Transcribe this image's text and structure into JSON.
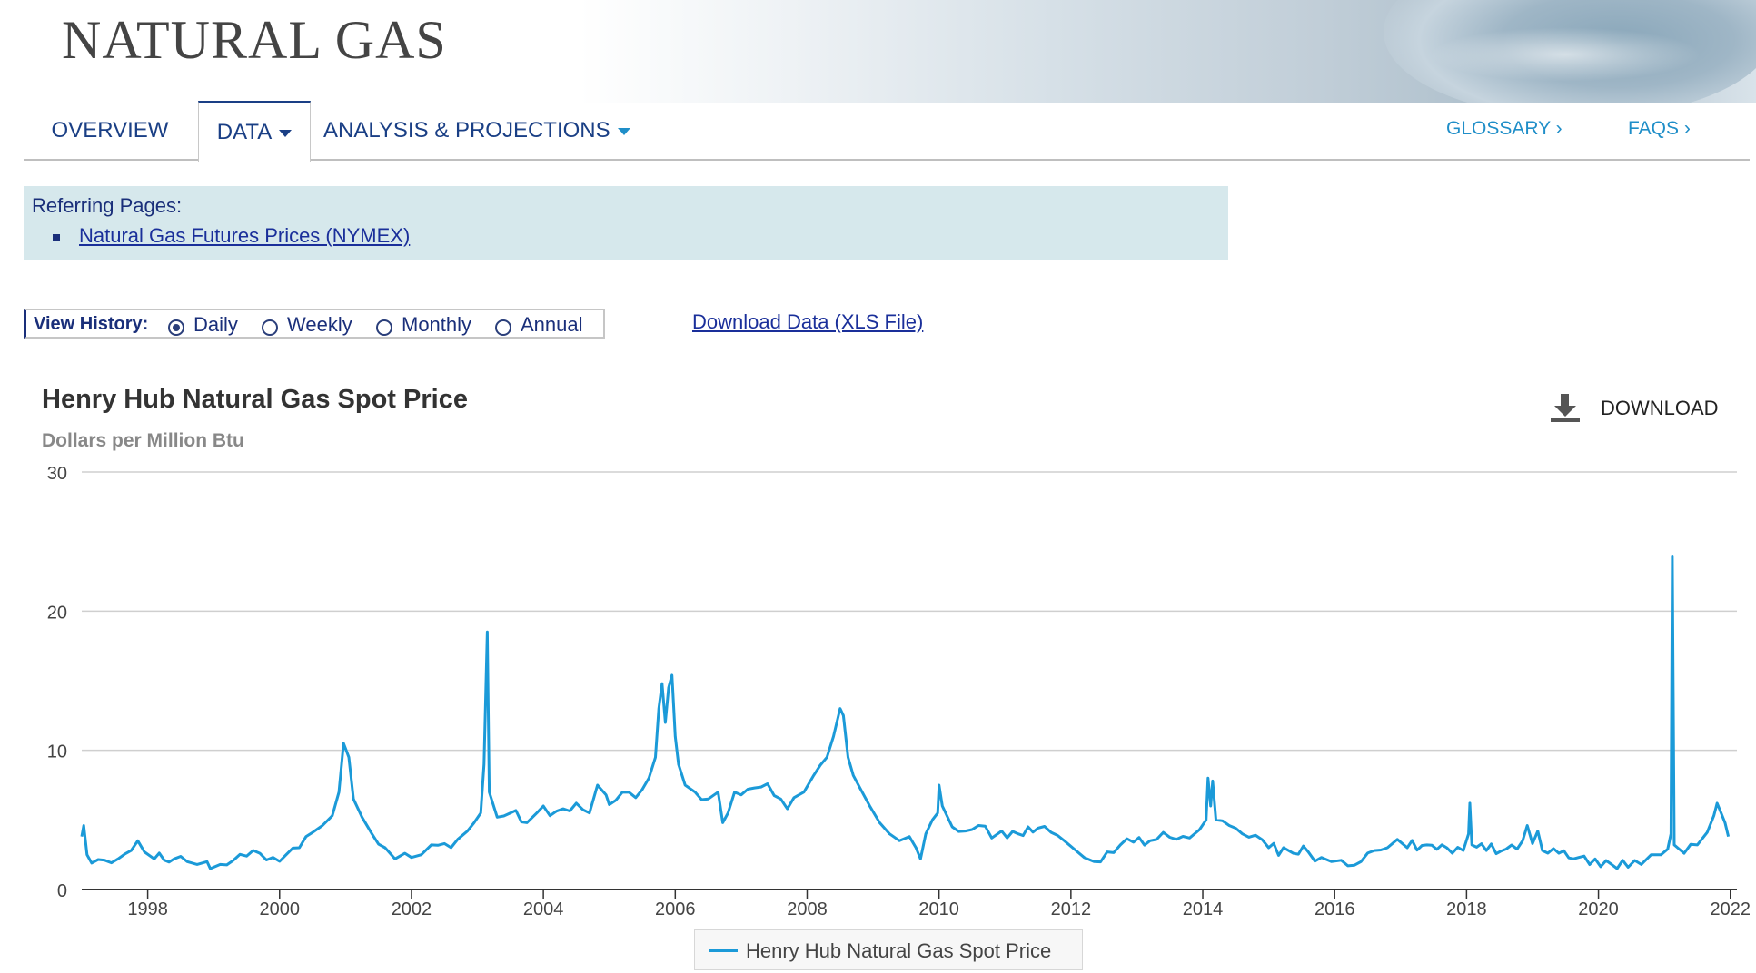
{
  "header": {
    "title": "NATURAL GAS"
  },
  "nav": {
    "overview": "OVERVIEW",
    "data": "DATA",
    "analysis": "ANALYSIS & PROJECTIONS",
    "glossary": "GLOSSARY ›",
    "faqs": "FAQS ›"
  },
  "referring": {
    "title": "Referring Pages:",
    "link": "Natural Gas Futures Prices (NYMEX)"
  },
  "view_history": {
    "label": "View History:",
    "options": [
      "Daily",
      "Weekly",
      "Monthly",
      "Annual"
    ],
    "selected": "Daily"
  },
  "download_xls": "Download Data (XLS File)",
  "download_button": "DOWNLOAD",
  "colors": {
    "series": "#1b9ad8",
    "nav_text": "#1a3f85",
    "accent": "#1f8ec8",
    "panel": "#d6e8ec"
  },
  "icons": {
    "download": "download-icon"
  },
  "chart_data": {
    "type": "line",
    "title": "Henry Hub Natural Gas Spot Price",
    "subtitle": "Dollars per Million Btu",
    "xlim": [
      1997,
      2022.1
    ],
    "ylim": [
      0,
      30
    ],
    "yticks": [
      0,
      10,
      20,
      30
    ],
    "xticks": [
      1998,
      2000,
      2002,
      2004,
      2006,
      2008,
      2010,
      2012,
      2014,
      2016,
      2018,
      2020,
      2022
    ],
    "grid": true,
    "legend_position": "bottom-center",
    "series": [
      {
        "name": "Henry Hub Natural Gas Spot Price",
        "color": "#1b9ad8",
        "points": [
          [
            1997.0,
            3.8
          ],
          [
            1997.03,
            4.6
          ],
          [
            1997.08,
            2.5
          ],
          [
            1997.15,
            1.9
          ],
          [
            1997.35,
            2.1
          ],
          [
            1997.55,
            2.2
          ],
          [
            1997.75,
            2.8
          ],
          [
            1997.85,
            3.5
          ],
          [
            1997.95,
            2.7
          ],
          [
            1998.1,
            2.2
          ],
          [
            1998.4,
            2.2
          ],
          [
            1998.6,
            2.0
          ],
          [
            1998.75,
            1.8
          ],
          [
            1998.9,
            2.0
          ],
          [
            1998.95,
            1.5
          ],
          [
            1999.1,
            1.8
          ],
          [
            1999.3,
            2.1
          ],
          [
            1999.5,
            2.4
          ],
          [
            1999.7,
            2.6
          ],
          [
            1999.9,
            2.3
          ],
          [
            2000.1,
            2.5
          ],
          [
            2000.3,
            3.0
          ],
          [
            2000.5,
            4.1
          ],
          [
            2000.65,
            4.6
          ],
          [
            2000.8,
            5.3
          ],
          [
            2000.9,
            7.0
          ],
          [
            2000.97,
            10.5
          ],
          [
            2001.05,
            9.5
          ],
          [
            2001.12,
            6.5
          ],
          [
            2001.25,
            5.2
          ],
          [
            2001.4,
            4.0
          ],
          [
            2001.6,
            3.0
          ],
          [
            2001.75,
            2.2
          ],
          [
            2001.9,
            2.6
          ],
          [
            2002.0,
            2.3
          ],
          [
            2002.15,
            2.5
          ],
          [
            2002.3,
            3.2
          ],
          [
            2002.5,
            3.3
          ],
          [
            2002.7,
            3.6
          ],
          [
            2002.85,
            4.2
          ],
          [
            2002.95,
            4.8
          ],
          [
            2003.05,
            5.5
          ],
          [
            2003.1,
            9.0
          ],
          [
            2003.15,
            18.5
          ],
          [
            2003.18,
            7.0
          ],
          [
            2003.3,
            5.2
          ],
          [
            2003.5,
            5.5
          ],
          [
            2003.75,
            4.8
          ],
          [
            2003.9,
            5.5
          ],
          [
            2004.0,
            6.0
          ],
          [
            2004.1,
            5.3
          ],
          [
            2004.3,
            5.8
          ],
          [
            2004.5,
            6.2
          ],
          [
            2004.7,
            5.5
          ],
          [
            2004.82,
            7.5
          ],
          [
            2004.95,
            6.8
          ],
          [
            2005.0,
            6.1
          ],
          [
            2005.2,
            7.0
          ],
          [
            2005.4,
            6.6
          ],
          [
            2005.6,
            8.0
          ],
          [
            2005.7,
            9.5
          ],
          [
            2005.75,
            13.0
          ],
          [
            2005.8,
            14.8
          ],
          [
            2005.85,
            12.0
          ],
          [
            2005.9,
            14.5
          ],
          [
            2005.95,
            15.4
          ],
          [
            2006.0,
            11.0
          ],
          [
            2006.05,
            9.0
          ],
          [
            2006.15,
            7.5
          ],
          [
            2006.3,
            7.0
          ],
          [
            2006.5,
            6.5
          ],
          [
            2006.65,
            7.0
          ],
          [
            2006.72,
            4.8
          ],
          [
            2006.8,
            5.5
          ],
          [
            2006.9,
            7.0
          ],
          [
            2007.0,
            6.8
          ],
          [
            2007.2,
            7.3
          ],
          [
            2007.4,
            7.6
          ],
          [
            2007.6,
            6.5
          ],
          [
            2007.7,
            5.8
          ],
          [
            2007.8,
            6.6
          ],
          [
            2007.95,
            7.0
          ],
          [
            2008.1,
            8.2
          ],
          [
            2008.3,
            9.5
          ],
          [
            2008.4,
            11.0
          ],
          [
            2008.5,
            13.0
          ],
          [
            2008.55,
            12.5
          ],
          [
            2008.62,
            9.5
          ],
          [
            2008.7,
            8.2
          ],
          [
            2008.8,
            7.3
          ],
          [
            2008.95,
            6.0
          ],
          [
            2009.1,
            4.8
          ],
          [
            2009.25,
            4.0
          ],
          [
            2009.4,
            3.5
          ],
          [
            2009.55,
            3.8
          ],
          [
            2009.65,
            3.0
          ],
          [
            2009.72,
            2.2
          ],
          [
            2009.8,
            4.0
          ],
          [
            2009.9,
            5.0
          ],
          [
            2009.98,
            5.5
          ],
          [
            2010.0,
            7.5
          ],
          [
            2010.05,
            6.0
          ],
          [
            2010.2,
            4.5
          ],
          [
            2010.4,
            4.2
          ],
          [
            2010.6,
            4.6
          ],
          [
            2010.8,
            3.7
          ],
          [
            2010.95,
            4.2
          ],
          [
            2011.2,
            4.0
          ],
          [
            2011.5,
            4.4
          ],
          [
            2011.7,
            4.1
          ],
          [
            2011.9,
            3.5
          ],
          [
            2012.05,
            2.9
          ],
          [
            2012.2,
            2.3
          ],
          [
            2012.35,
            2.0
          ],
          [
            2012.55,
            2.7
          ],
          [
            2012.75,
            3.2
          ],
          [
            2012.95,
            3.4
          ],
          [
            2013.2,
            3.5
          ],
          [
            2013.4,
            4.1
          ],
          [
            2013.6,
            3.6
          ],
          [
            2013.8,
            3.7
          ],
          [
            2013.95,
            4.3
          ],
          [
            2014.05,
            5.0
          ],
          [
            2014.08,
            8.0
          ],
          [
            2014.12,
            6.0
          ],
          [
            2014.15,
            7.8
          ],
          [
            2014.2,
            5.0
          ],
          [
            2014.4,
            4.6
          ],
          [
            2014.6,
            4.0
          ],
          [
            2014.8,
            3.9
          ],
          [
            2015.0,
            3.0
          ],
          [
            2015.3,
            2.8
          ],
          [
            2015.6,
            2.7
          ],
          [
            2015.8,
            2.3
          ],
          [
            2015.95,
            2.0
          ],
          [
            2016.1,
            2.1
          ],
          [
            2016.2,
            1.7
          ],
          [
            2016.4,
            2.0
          ],
          [
            2016.6,
            2.8
          ],
          [
            2016.8,
            3.0
          ],
          [
            2016.95,
            3.6
          ],
          [
            2017.1,
            3.0
          ],
          [
            2017.4,
            3.2
          ],
          [
            2017.7,
            3.0
          ],
          [
            2017.95,
            2.8
          ],
          [
            2018.03,
            4.0
          ],
          [
            2018.05,
            6.2
          ],
          [
            2018.08,
            3.2
          ],
          [
            2018.3,
            2.8
          ],
          [
            2018.6,
            2.9
          ],
          [
            2018.85,
            3.5
          ],
          [
            2018.92,
            4.6
          ],
          [
            2019.0,
            3.3
          ],
          [
            2019.08,
            4.2
          ],
          [
            2019.15,
            2.8
          ],
          [
            2019.4,
            2.6
          ],
          [
            2019.7,
            2.3
          ],
          [
            2019.95,
            2.2
          ],
          [
            2020.2,
            1.8
          ],
          [
            2020.45,
            1.6
          ],
          [
            2020.65,
            1.8
          ],
          [
            2020.8,
            2.5
          ],
          [
            2020.95,
            2.5
          ],
          [
            2021.05,
            2.9
          ],
          [
            2021.1,
            4.0
          ],
          [
            2021.12,
            23.9
          ],
          [
            2021.15,
            3.2
          ],
          [
            2021.3,
            2.6
          ],
          [
            2021.5,
            3.2
          ],
          [
            2021.65,
            4.1
          ],
          [
            2021.75,
            5.3
          ],
          [
            2021.8,
            6.2
          ],
          [
            2021.86,
            5.5
          ],
          [
            2021.92,
            4.8
          ],
          [
            2021.97,
            3.8
          ]
        ]
      }
    ]
  }
}
